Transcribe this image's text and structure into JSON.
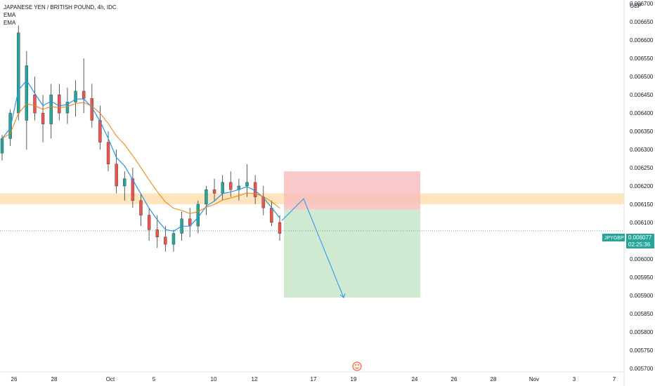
{
  "chart_data": {
    "type": "candlestick",
    "title": "JAPANESE YEN / BRITISH POUND, 4h, IDC",
    "indicators": [
      "EMA",
      "EMA"
    ],
    "currency_label": "GBP",
    "symbol": "JPYGBP",
    "last_price": "0.006077",
    "countdown": "02:25:36",
    "ylim": [
      0.00569,
      0.00671
    ],
    "y_ticks": [
      "0.006700",
      "0.006650",
      "0.006600",
      "0.006550",
      "0.006500",
      "0.006450",
      "0.006400",
      "0.006350",
      "0.006300",
      "0.006250",
      "0.006200",
      "0.006150",
      "0.006100",
      "0.006050",
      "0.006000",
      "0.005950",
      "0.005900",
      "0.005850",
      "0.005800",
      "0.005750",
      "0.005700"
    ],
    "x_ticks": [
      "26",
      "28",
      "Oct",
      "5",
      "10",
      "12",
      "17",
      "19",
      "24",
      "26",
      "28",
      "Nov",
      "3",
      "7"
    ],
    "colors": {
      "up": "#26a69a",
      "down": "#ef5350",
      "ema_fast": "#2196f3",
      "ema_slow": "#f57c00",
      "zone": "#ffe0b2",
      "stop": "#f8bbbb",
      "target": "#c8e6c9",
      "projection": "#2196f3"
    },
    "zone": [
      0.00615,
      0.00618
    ],
    "position": {
      "entry": 0.006135,
      "stop": 0.00624,
      "target": 0.005894
    },
    "projection": [
      [
        0.006105,
        0.006165
      ],
      [
        0.006165,
        0.005894
      ]
    ],
    "candles": [
      [
        0.00629,
        0.00634,
        0.00627,
        0.00633
      ],
      [
        0.00633,
        0.00641,
        0.00631,
        0.0064
      ],
      [
        0.0064,
        0.00664,
        0.00638,
        0.00662
      ],
      [
        0.00638,
        0.00657,
        0.0063,
        0.00653
      ],
      [
        0.00645,
        0.0065,
        0.00638,
        0.0064
      ],
      [
        0.0064,
        0.00645,
        0.00632,
        0.00637
      ],
      [
        0.00637,
        0.00648,
        0.00633,
        0.00645
      ],
      [
        0.00645,
        0.00648,
        0.00638,
        0.0064
      ],
      [
        0.0064,
        0.00647,
        0.00637,
        0.00643
      ],
      [
        0.00643,
        0.00649,
        0.00639,
        0.00646
      ],
      [
        0.00646,
        0.00655,
        0.0064,
        0.00644
      ],
      [
        0.00644,
        0.00648,
        0.00636,
        0.00638
      ],
      [
        0.00638,
        0.00642,
        0.0063,
        0.00632
      ],
      [
        0.00632,
        0.00635,
        0.00624,
        0.00626
      ],
      [
        0.00626,
        0.0063,
        0.00618,
        0.0062
      ],
      [
        0.0062,
        0.00624,
        0.00616,
        0.00622
      ],
      [
        0.00622,
        0.00625,
        0.00614,
        0.00616
      ],
      [
        0.00616,
        0.00618,
        0.00609,
        0.00612
      ],
      [
        0.00612,
        0.00614,
        0.00605,
        0.00608
      ],
      [
        0.00608,
        0.00612,
        0.00603,
        0.00606
      ],
      [
        0.00606,
        0.00609,
        0.00602,
        0.00604
      ],
      [
        0.00604,
        0.00608,
        0.00602,
        0.00607
      ],
      [
        0.00607,
        0.00613,
        0.00605,
        0.00611
      ],
      [
        0.00611,
        0.00614,
        0.00606,
        0.00609
      ],
      [
        0.00609,
        0.00616,
        0.00607,
        0.00615
      ],
      [
        0.00615,
        0.0062,
        0.00612,
        0.00619
      ],
      [
        0.00619,
        0.00622,
        0.00616,
        0.00618
      ],
      [
        0.00618,
        0.00623,
        0.00616,
        0.00621
      ],
      [
        0.00621,
        0.00624,
        0.00617,
        0.00619
      ],
      [
        0.00619,
        0.00622,
        0.00616,
        0.0062
      ],
      [
        0.0062,
        0.00626,
        0.00617,
        0.00621
      ],
      [
        0.00621,
        0.00623,
        0.00615,
        0.00617
      ],
      [
        0.00617,
        0.0062,
        0.00612,
        0.00614
      ],
      [
        0.00614,
        0.00616,
        0.00609,
        0.0061
      ],
      [
        0.0061,
        0.00612,
        0.00605,
        0.00607
      ]
    ]
  }
}
